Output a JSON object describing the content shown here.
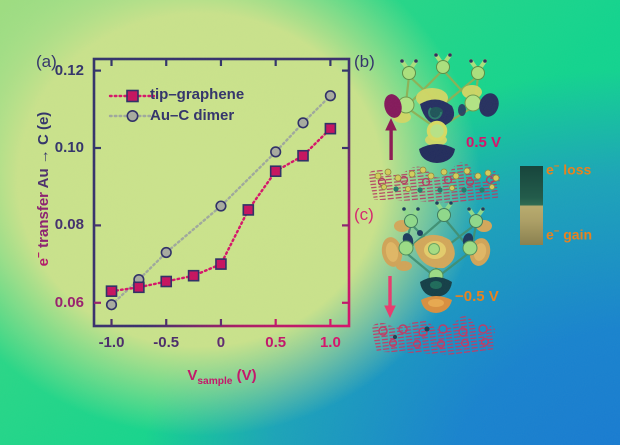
{
  "figure": {
    "type": "scientific-figure",
    "description_visible_panels": [
      "a",
      "b",
      "c"
    ]
  },
  "palette": {
    "background_yellow_green": "#cbe38c",
    "background_emerald": "#12d48e",
    "background_blue": "#1878d2",
    "ink_navy": "#32336a",
    "ink_crimson": "#d6136a",
    "ink_purple": "#5e2a70",
    "orange_accent": "#e8821f",
    "marker_red": "#c6135f",
    "marker_gray": "#a7ab9f",
    "blob_navy": "#222c5c",
    "blob_tan": "#d0a458",
    "colorbar_loss_teal": "#17453c",
    "colorbar_gain_khaki": "#b8ab6e",
    "slab_hatch_crimson": "#b43a60",
    "arrow_up_magenta": "#8c1a54",
    "arrow_down_pink": "#e83a6e"
  },
  "panels": {
    "a": {
      "label": "(a)"
    },
    "b": {
      "label": "(b)",
      "bias": "0.5 V",
      "arrow_direction": "up"
    },
    "c": {
      "label": "(c)",
      "bias": "−0.5 V",
      "arrow_direction": "down"
    }
  },
  "axis": {
    "ylabel_text": "e− transfer Au → C (e)",
    "ylabel_parts": [
      {
        "text": "e",
        "color": "#b2196b"
      },
      {
        "text": "−",
        "sup": true,
        "color": "#b2196b"
      },
      {
        "text": " transfer ",
        "color": "#8c2070"
      },
      {
        "text": "Au ",
        "color": "#4c2e6c"
      },
      {
        "text": "→ C (e)",
        "color": "#32336a"
      }
    ],
    "xlabel_text": "Vsample (V)",
    "xlabel_parts": [
      {
        "text": "V"
      },
      {
        "text": "sample",
        "sub": true
      },
      {
        "text": " (V)"
      }
    ]
  },
  "colorbar": {
    "top_label_text": "e− loss",
    "top_label_parts": [
      {
        "text": "e"
      },
      {
        "text": "−",
        "sup": true
      },
      {
        "text": " loss"
      }
    ],
    "bottom_label_text": "e− gain",
    "bottom_label_parts": [
      {
        "text": "e"
      },
      {
        "text": "−",
        "sup": true
      },
      {
        "text": " gain"
      }
    ]
  },
  "chart_data": {
    "type": "line",
    "title": "",
    "xlabel": "V_sample (V)",
    "ylabel": "e− transfer Au → C (e)",
    "xlim": [
      -1.16,
      1.17
    ],
    "ylim": [
      0.054,
      0.123
    ],
    "xticks": [
      -1.0,
      -0.5,
      0,
      0.5,
      1.0
    ],
    "yticks": [
      0.06,
      0.08,
      0.1,
      0.12
    ],
    "grid": false,
    "legend_position": "upper-left",
    "series": [
      {
        "name": "Au–C dimer",
        "marker": "circle",
        "line_style": "dotted",
        "color": "#9fa89d",
        "marker_fill": "#a7ab9f",
        "marker_edge": "#2e2f66",
        "x": [
          -1.0,
          -0.75,
          -0.5,
          0,
          0.5,
          0.75,
          1.0
        ],
        "y": [
          0.0595,
          0.066,
          0.073,
          0.085,
          0.099,
          0.1065,
          0.1135
        ]
      },
      {
        "name": "tip–graphene",
        "marker": "square",
        "line_style": "dotted",
        "color": "#d6156a",
        "marker_fill": "#c6135f",
        "marker_edge": "#2e2f66",
        "x": [
          -1.0,
          -0.75,
          -0.5,
          -0.25,
          0,
          0.25,
          0.5,
          0.75,
          1.0
        ],
        "y": [
          0.063,
          0.064,
          0.0655,
          0.067,
          0.07,
          0.084,
          0.094,
          0.098,
          0.105
        ]
      }
    ],
    "style": {
      "frame_color_start": "#32336a",
      "frame_color_end": "#d6136a",
      "xtick_colors": [
        "#4a2c6a",
        "#4a2c6a",
        "#5e2a70",
        "#c2156a",
        "#d6136a"
      ],
      "ytick_colors": [
        "#98206e",
        "#43306c",
        "#32336a",
        "#32336a"
      ],
      "right_tick_colors": [
        "#c2156a",
        "#8c2070",
        "#3a2e6e",
        "#32336a"
      ],
      "top_tick_color": "#32336a"
    }
  }
}
